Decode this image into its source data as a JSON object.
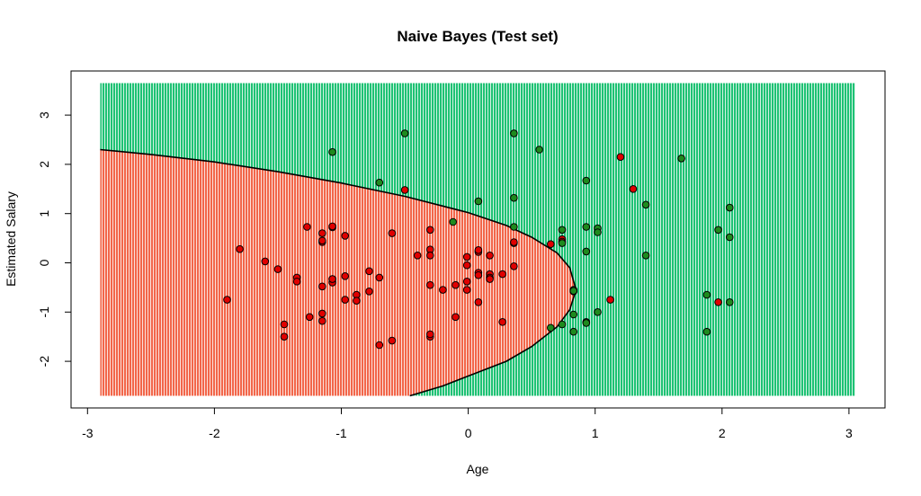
{
  "chart_data": {
    "type": "scatter",
    "title": "Naive Bayes  (Test set)",
    "xlabel": "Age",
    "ylabel": "Estimated Salary",
    "xlim": [
      -3.0,
      3.0
    ],
    "ylim": [
      -2.7,
      3.6
    ],
    "x_ticks": [
      "-3",
      "-2",
      "-1",
      "0",
      "1",
      "2",
      "3"
    ],
    "y_ticks": [
      "-2",
      "-1",
      "0",
      "1",
      "2",
      "3"
    ],
    "grid": false,
    "region_extent": {
      "x": [
        -2.9,
        3.05
      ],
      "y": [
        -2.7,
        3.65
      ]
    },
    "colors": {
      "region_class_0": "#F2664A",
      "region_class_1": "#1EC274",
      "point_class_0": "#E00000",
      "point_class_1": "#1E8A1E",
      "point_outline": "#000000",
      "boundary": "#000000"
    },
    "decision_boundary": {
      "x": [
        -2.9,
        -2.5,
        -2.0,
        -1.5,
        -1.0,
        -0.5,
        0.0,
        0.3,
        0.5,
        0.7,
        0.8,
        0.85,
        0.8,
        0.7,
        0.5,
        0.3,
        0.0,
        -0.2,
        -0.46
      ],
      "y": [
        2.3,
        2.2,
        2.05,
        1.85,
        1.62,
        1.35,
        1.02,
        0.76,
        0.52,
        0.2,
        -0.1,
        -0.55,
        -0.95,
        -1.3,
        -1.7,
        -2.0,
        -2.3,
        -2.5,
        -2.7
      ]
    },
    "series": [
      {
        "class": 0,
        "x": [
          -1.9,
          -1.8,
          -1.6,
          -1.5,
          -1.45,
          -1.45,
          -1.35,
          -1.35,
          -1.27,
          -1.25,
          -1.15,
          -1.15,
          -1.15,
          -1.15,
          -1.15,
          -1.15,
          -1.07,
          -1.07,
          -1.07,
          -1.07,
          -1.07,
          -0.97,
          -0.97,
          -0.97,
          -0.88,
          -0.88,
          -0.78,
          -0.78,
          -0.7,
          -0.7,
          -0.6,
          -0.6,
          -0.5,
          -0.4,
          -0.3,
          -0.3,
          -0.3,
          -0.3,
          -0.3,
          -0.3,
          -0.2,
          -0.1,
          -0.1,
          -0.01,
          -0.01,
          -0.01,
          -0.01,
          0.08,
          0.08,
          0.08,
          0.08,
          0.08,
          0.17,
          0.17,
          0.17,
          0.17,
          0.27,
          0.27,
          0.36,
          0.36,
          0.36,
          0.65,
          0.74,
          0.74,
          0.83,
          1.12,
          1.2,
          1.3,
          1.97
        ],
        "y": [
          -0.75,
          0.28,
          0.03,
          -0.13,
          -1.25,
          -1.5,
          -0.3,
          -0.38,
          0.73,
          -1.1,
          0.6,
          0.42,
          -0.48,
          -1.03,
          -1.18,
          0.45,
          0.72,
          0.74,
          -0.33,
          -0.4,
          -0.33,
          0.55,
          -0.27,
          -0.75,
          -0.65,
          -0.77,
          -0.17,
          -0.58,
          -0.3,
          -1.67,
          0.6,
          -1.58,
          1.48,
          0.15,
          0.67,
          0.27,
          0.15,
          -0.45,
          -1.5,
          -1.45,
          -0.55,
          -0.45,
          -1.1,
          0.12,
          -0.05,
          -0.38,
          -0.55,
          0.22,
          -0.2,
          -0.25,
          -0.8,
          0.26,
          0.15,
          -0.23,
          -0.3,
          -0.33,
          -0.23,
          -1.2,
          0.4,
          0.42,
          -0.07,
          0.38,
          0.48,
          0.43,
          -0.58,
          -0.75,
          2.15,
          1.5,
          -0.8
        ]
      },
      {
        "class": 1,
        "x": [
          -1.07,
          -0.7,
          -0.5,
          -0.12,
          0.08,
          0.36,
          0.36,
          0.36,
          0.56,
          0.65,
          0.74,
          0.74,
          0.74,
          0.83,
          0.83,
          0.83,
          0.83,
          0.93,
          0.93,
          0.93,
          0.93,
          0.93,
          1.02,
          1.02,
          1.02,
          1.4,
          1.4,
          1.68,
          1.88,
          1.88,
          1.97,
          2.06,
          2.06,
          2.06
        ],
        "y": [
          2.25,
          1.63,
          2.63,
          0.83,
          1.25,
          2.63,
          1.32,
          0.73,
          2.3,
          -1.32,
          0.67,
          0.4,
          -1.25,
          -0.55,
          -1.05,
          -1.4,
          -0.57,
          1.67,
          0.73,
          0.23,
          -1.2,
          -1.22,
          0.7,
          0.62,
          -1.0,
          1.18,
          0.15,
          2.12,
          -0.65,
          -1.4,
          0.67,
          1.12,
          0.52,
          -0.8
        ]
      }
    ]
  }
}
